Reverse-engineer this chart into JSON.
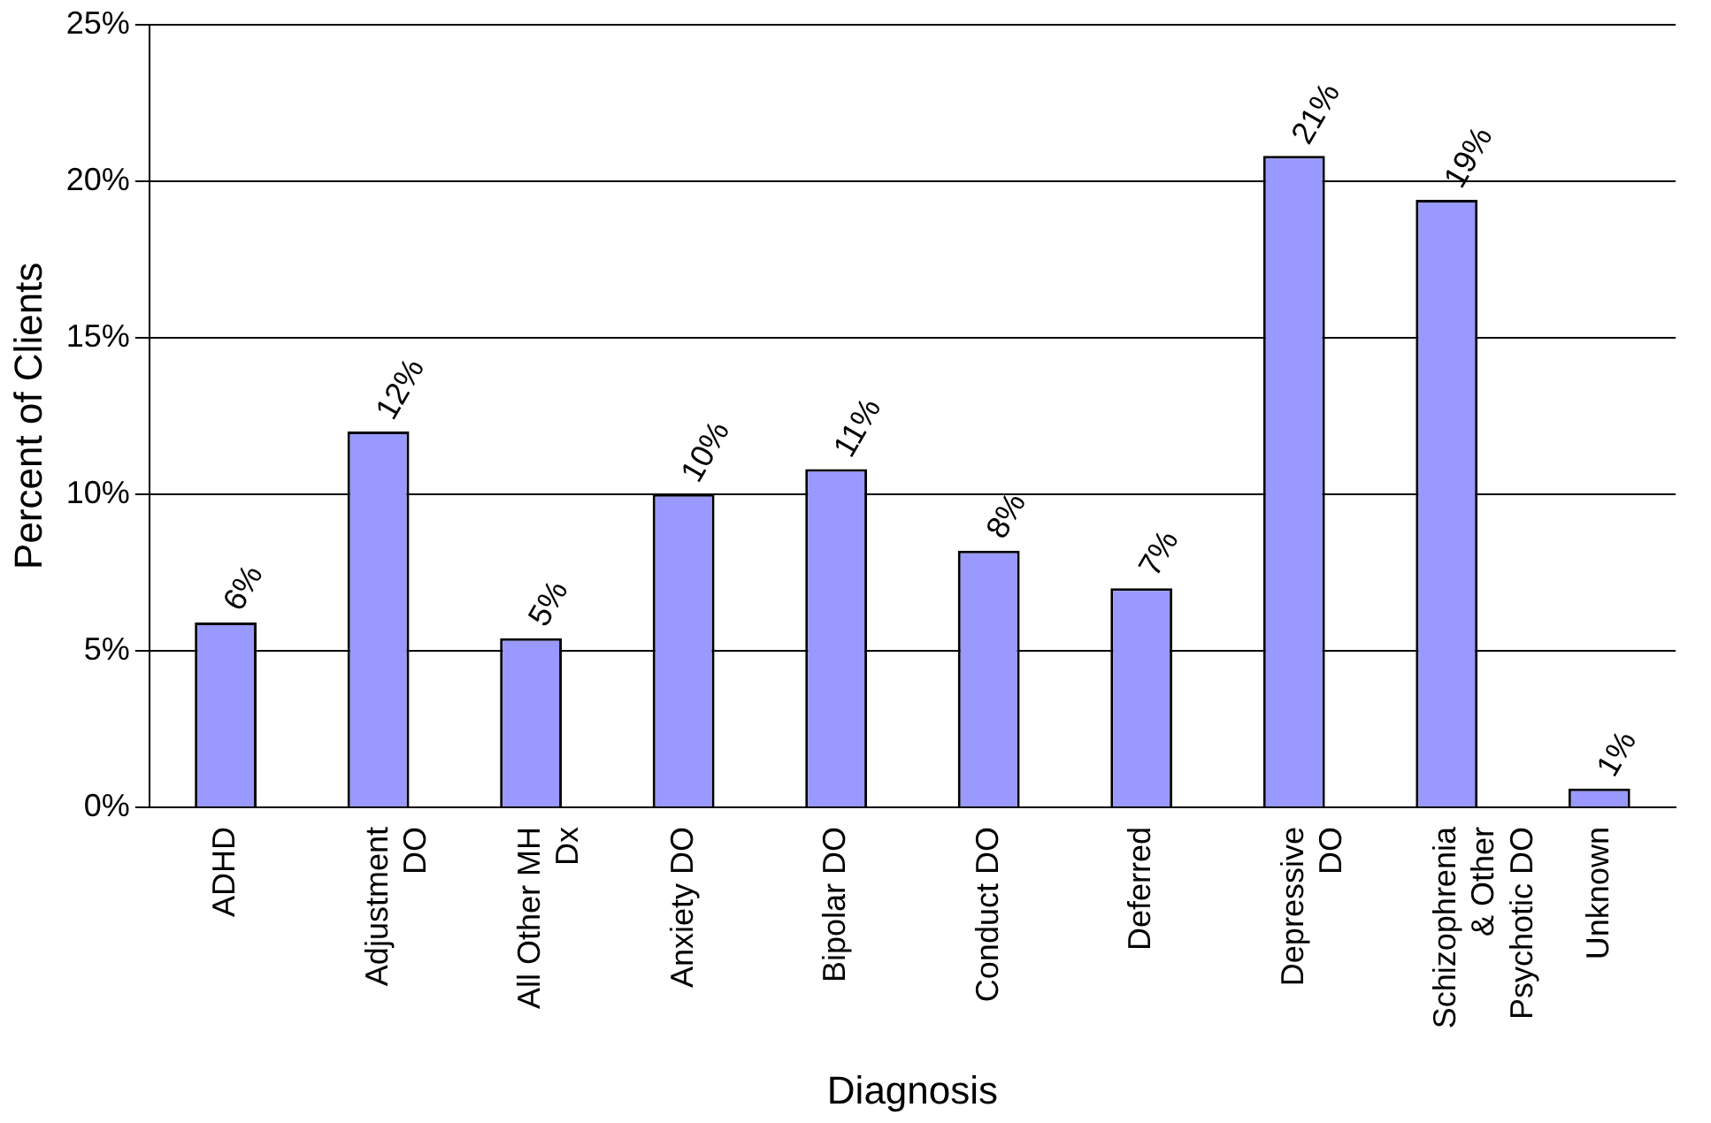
{
  "chart_data": {
    "type": "bar",
    "xlabel": "Diagnosis",
    "ylabel": "Percent of Clients",
    "categories": [
      "ADHD",
      "Adjustment DO",
      "All Other MH Dx",
      "Anxiety DO",
      "Bipolar DO",
      "Conduct DO",
      "Deferred",
      "Depressive DO",
      "Schizophrenia & Other Psychotic DO",
      "Unknown"
    ],
    "values": [
      5.9,
      12.0,
      5.4,
      10.0,
      10.8,
      8.2,
      7.0,
      20.8,
      19.4,
      0.6
    ],
    "value_labels": [
      "6%",
      "12%",
      "5%",
      "10%",
      "11%",
      "8%",
      "7%",
      "21%",
      "19%",
      "1%"
    ],
    "color": "#9999ff",
    "ylim": [
      0,
      25
    ],
    "yticks": [
      {
        "value": 0,
        "label": "0%"
      },
      {
        "value": 5,
        "label": "5%"
      },
      {
        "value": 10,
        "label": "10%"
      },
      {
        "value": 15,
        "label": "15%"
      },
      {
        "value": 20,
        "label": "20%"
      },
      {
        "value": 25,
        "label": "25%"
      }
    ],
    "grid": "y",
    "legend": false
  }
}
